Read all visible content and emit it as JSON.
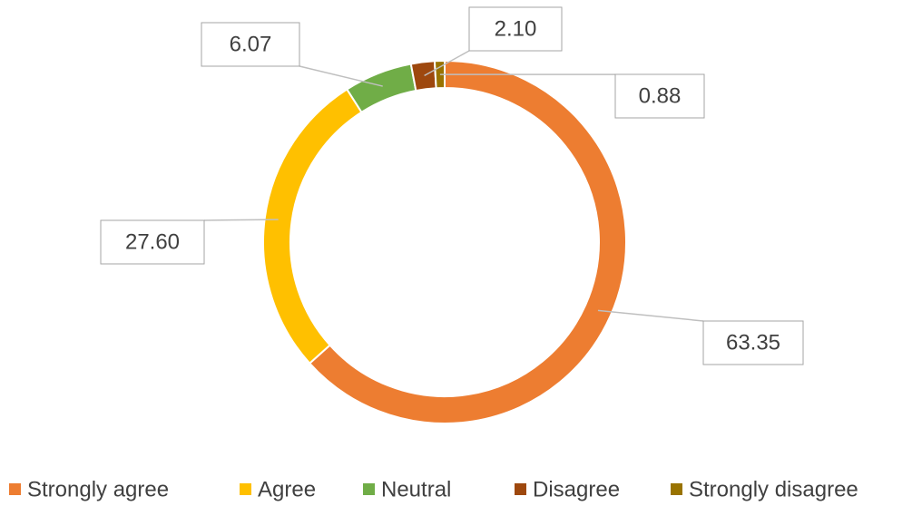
{
  "chart_data": {
    "type": "donut",
    "categories": [
      "Strongly agree",
      "Agree",
      "Neutral",
      "Disagree",
      "Strongly disagree"
    ],
    "values": [
      63.35,
      27.6,
      6.07,
      2.1,
      0.88
    ],
    "value_labels": [
      "63.35",
      "27.60",
      "6.07",
      "2.10",
      "0.88"
    ],
    "colors": [
      "#ED7D31",
      "#FFC000",
      "#70AD47",
      "#9E480E",
      "#997300"
    ],
    "legend": "bottom"
  }
}
